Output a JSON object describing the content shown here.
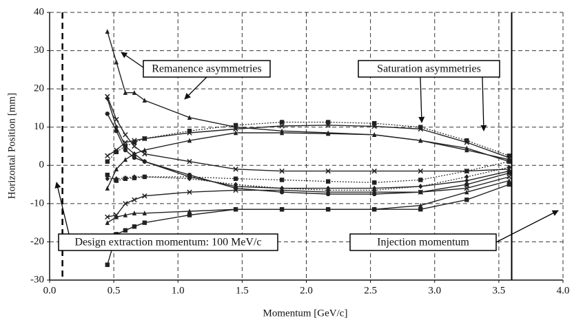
{
  "chart_data": {
    "type": "line",
    "x_label": "Momentum [GeV/c]",
    "y_label": "Horizontal Position [mm]",
    "xlim": [
      0,
      4
    ],
    "ylim": [
      -30,
      40
    ],
    "xticks": [
      {
        "value": 0,
        "label": "0.0"
      },
      {
        "value": 0.5,
        "label": "0.5"
      },
      {
        "value": 1,
        "label": "1.0"
      },
      {
        "value": 1.5,
        "label": "1.5"
      },
      {
        "value": 2,
        "label": "2.0"
      },
      {
        "value": 2.5,
        "label": "2.5"
      },
      {
        "value": 3,
        "label": "3.0"
      },
      {
        "value": 3.5,
        "label": "3.5"
      },
      {
        "value": 4,
        "label": "4.0"
      }
    ],
    "yticks": [
      -30,
      -20,
      -10,
      0,
      10,
      20,
      30,
      40
    ],
    "grid": true,
    "x": [
      0.45,
      0.52,
      0.59,
      0.66,
      0.74,
      1.09,
      1.45,
      1.81,
      2.17,
      2.53,
      2.89,
      3.25,
      3.58
    ],
    "vlines": [
      {
        "x": 0.1,
        "style": "dashed"
      },
      {
        "x": 3.6,
        "style": "solid"
      }
    ],
    "annotations": [
      "Remanence asymmetries",
      "Saturation asymmetries",
      "Design extraction momentum: 100 MeV/c",
      "Injection momentum"
    ],
    "series": [
      {
        "color": "#222222",
        "marker": "triangle",
        "dash": "solid",
        "values": [
          35,
          27,
          19,
          19,
          17,
          12.5,
          10,
          9,
          8.5,
          8,
          6.5,
          4,
          1.5
        ]
      },
      {
        "color": "#222222",
        "marker": "cross",
        "dash": "solid",
        "values": [
          18,
          12,
          8,
          5,
          3,
          1,
          -1,
          -1.5,
          -1.5,
          -1.5,
          -1.5,
          -1.5,
          -1
        ]
      },
      {
        "color": "#222222",
        "marker": "diamond",
        "dash": "solid",
        "values": [
          17.5,
          10,
          5,
          3,
          1,
          -3,
          -5.5,
          -6,
          -6,
          -6,
          -5.5,
          -4,
          -1.5
        ]
      },
      {
        "color": "#222222",
        "marker": "circle",
        "dash": "solid",
        "values": [
          13.5,
          9,
          4,
          2,
          1,
          -2.5,
          -6,
          -7,
          -7.5,
          -7.5,
          -7,
          -5,
          -2
        ]
      },
      {
        "color": "#222222",
        "marker": "square",
        "dash": "dotted",
        "values": [
          1,
          3.5,
          5,
          6,
          7,
          9,
          10.5,
          11.3,
          11.3,
          11,
          10,
          6.5,
          2.5
        ]
      },
      {
        "color": "#222222",
        "marker": "cross",
        "dash": "solid",
        "values": [
          2.5,
          4,
          6,
          6.5,
          7,
          8.5,
          9.5,
          10.3,
          10.5,
          10.2,
          9.5,
          6,
          2
        ]
      },
      {
        "color": "#222222",
        "marker": "triangle",
        "dash": "solid",
        "values": [
          -6,
          -1,
          1.5,
          3,
          4,
          6.5,
          8.5,
          8.5,
          8.3,
          8,
          6.5,
          4.5,
          1
        ]
      },
      {
        "color": "#222222",
        "marker": "square",
        "dash": "dotted",
        "values": [
          -2.5,
          -4,
          -3.5,
          -3.3,
          -3,
          -3,
          -3.5,
          -3.8,
          -4.2,
          -4.5,
          -3.8,
          -1.5,
          1
        ]
      },
      {
        "color": "#222222",
        "marker": "diamond",
        "dash": "dotted",
        "values": [
          -3.5,
          -3.5,
          -3.3,
          -3,
          -3,
          -3.5,
          -5,
          -6,
          -6.5,
          -6.5,
          -5.5,
          -3,
          -0.5
        ]
      },
      {
        "color": "#222222",
        "marker": "cross",
        "dash": "solid",
        "values": [
          -13.5,
          -13,
          -10,
          -9,
          -8,
          -7,
          -6.5,
          -6.5,
          -7,
          -7,
          -7,
          -6,
          -3
        ]
      },
      {
        "color": "#222222",
        "marker": "triangle",
        "dash": "solid",
        "values": [
          -15,
          -13.5,
          -13,
          -12.5,
          -12.5,
          -12,
          -11.5,
          -11.5,
          -11.5,
          -11.5,
          -10.5,
          -7,
          -4
        ]
      },
      {
        "color": "#222222",
        "marker": "square",
        "dash": "solid",
        "values": [
          -26,
          -18,
          -17,
          -16,
          -15,
          -13,
          -11.5,
          -11.5,
          -11.5,
          -11.5,
          -11.5,
          -9,
          -5
        ]
      }
    ]
  }
}
